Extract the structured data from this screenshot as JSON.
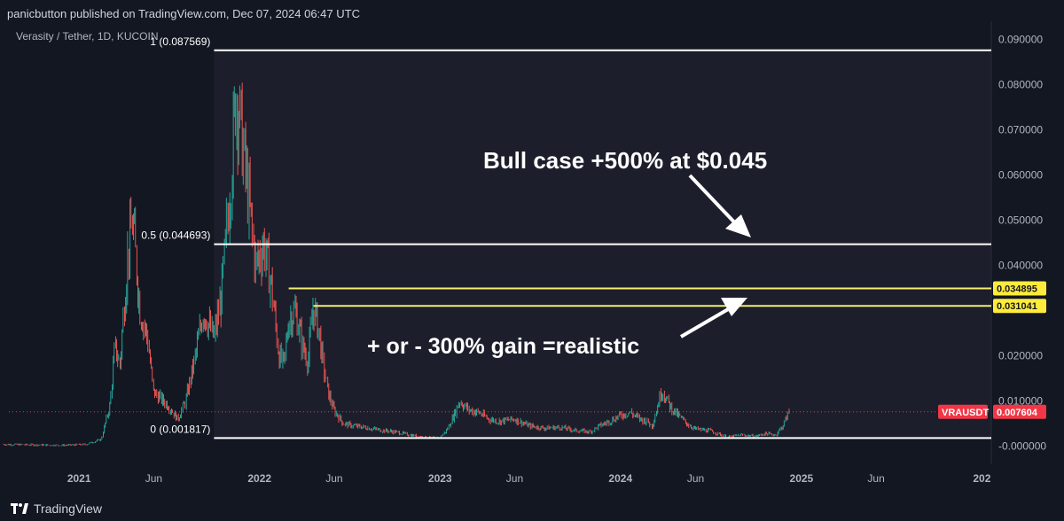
{
  "header": {
    "published_text": "panicbutton published on TradingView.com, Dec 07, 2024 06:47 UTC",
    "symbol_text": "Verasity / Tether, 1D, KUCOIN"
  },
  "footer": {
    "brand": "TradingView"
  },
  "chart_data": {
    "type": "line",
    "title": "Verasity / Tether, 1D, KUCOIN",
    "price_axis": {
      "range": [
        -0.004,
        0.094
      ],
      "ticks": [
        0.09,
        0.08,
        0.07,
        0.06,
        0.05,
        0.04,
        0.02,
        0.01,
        0.0
      ],
      "tick_labels": [
        "0.090000",
        "0.080000",
        "0.070000",
        "0.060000",
        "0.050000",
        "0.040000",
        "0.020000",
        "0.010000",
        "-0.000000"
      ]
    },
    "time_axis": {
      "ticks": [
        "2021-01-01",
        "2021-06-01",
        "2022-01-01",
        "2022-06-01",
        "2023-01-01",
        "2023-06-01",
        "2024-01-01",
        "2024-06-01",
        "2025-01-01",
        "2025-06-01",
        "2026-01-01"
      ],
      "tick_labels": [
        "2021",
        "Jun",
        "2022",
        "Jun",
        "2023",
        "Jun",
        "2024",
        "Jun",
        "2025",
        "Jun",
        "202"
      ]
    },
    "series": [
      {
        "x": [
          "2020-08-01",
          "2020-10-01",
          "2020-12-01",
          "2021-01-15",
          "2021-02-15",
          "2021-03-05",
          "2021-03-15",
          "2021-03-25",
          "2021-04-10",
          "2021-04-20",
          "2021-05-05",
          "2021-05-20",
          "2021-06-01",
          "2021-07-01",
          "2021-07-20",
          "2021-08-05",
          "2021-08-25",
          "2021-09-10",
          "2021-10-01",
          "2021-10-15",
          "2021-10-25",
          "2021-11-05",
          "2021-11-15",
          "2021-11-25",
          "2021-12-10",
          "2021-12-25",
          "2022-01-10",
          "2022-01-25",
          "2022-02-10",
          "2022-02-20",
          "2022-03-01",
          "2022-03-15",
          "2022-03-30",
          "2022-04-10",
          "2022-04-15",
          "2022-04-20",
          "2022-05-01",
          "2022-05-10",
          "2022-05-20",
          "2022-06-01",
          "2022-06-20",
          "2022-07-10",
          "2022-08-01",
          "2022-09-01",
          "2022-10-01",
          "2022-11-01",
          "2022-12-01",
          "2022-12-31",
          "2023-01-15",
          "2023-01-28",
          "2023-02-10",
          "2023-03-01",
          "2023-03-20",
          "2023-04-10",
          "2023-05-01",
          "2023-06-01",
          "2023-07-01",
          "2023-08-01",
          "2023-09-01",
          "2023-10-01",
          "2023-11-01",
          "2023-11-20",
          "2023-12-10",
          "2024-01-01",
          "2024-01-20",
          "2024-02-10",
          "2024-02-25",
          "2024-03-05",
          "2024-03-12",
          "2024-03-25",
          "2024-04-10",
          "2024-04-25",
          "2024-05-15",
          "2024-06-01",
          "2024-07-01",
          "2024-08-05",
          "2024-09-01",
          "2024-10-01",
          "2024-10-20",
          "2024-11-10",
          "2024-11-25",
          "2024-12-07"
        ],
        "values": [
          0.0004,
          0.0003,
          0.0002,
          0.0004,
          0.0015,
          0.009,
          0.022,
          0.018,
          0.042,
          0.05,
          0.03,
          0.024,
          0.012,
          0.009,
          0.006,
          0.01,
          0.02,
          0.03,
          0.024,
          0.032,
          0.045,
          0.06,
          0.079,
          0.07,
          0.055,
          0.04,
          0.045,
          0.036,
          0.02,
          0.018,
          0.028,
          0.03,
          0.022,
          0.019,
          0.025,
          0.031,
          0.026,
          0.018,
          0.012,
          0.008,
          0.005,
          0.0045,
          0.0042,
          0.0036,
          0.0032,
          0.0025,
          0.002,
          0.0018,
          0.0035,
          0.0065,
          0.01,
          0.008,
          0.0075,
          0.006,
          0.0055,
          0.006,
          0.0045,
          0.004,
          0.0042,
          0.0035,
          0.0032,
          0.0045,
          0.0055,
          0.0068,
          0.0075,
          0.006,
          0.0055,
          0.0045,
          0.007,
          0.0125,
          0.009,
          0.007,
          0.005,
          0.0038,
          0.0034,
          0.002,
          0.0025,
          0.0022,
          0.0028,
          0.0025,
          0.0045,
          0.007604
        ]
      }
    ],
    "fib_levels": [
      {
        "label": "1 (0.087569)",
        "value": 0.087569
      },
      {
        "label": "0.5 (0.044693)",
        "value": 0.044693
      },
      {
        "label": "0 (0.001817)",
        "value": 0.001817
      }
    ],
    "horizontal_lines": [
      {
        "value": 0.034895,
        "label": "0.034895",
        "start": "2022-03-01"
      },
      {
        "value": 0.031041,
        "label": "0.031041",
        "start": "2022-04-20"
      }
    ],
    "current_price": {
      "symbol": "VRAUSDT",
      "value": 0.007604,
      "label": "0.007604"
    },
    "annotations": [
      {
        "text": "Bull case +500% at $0.045"
      },
      {
        "text": "+ or - 300% gain =realistic"
      }
    ],
    "colors": {
      "background": "#131722",
      "shaded_region": "#1c1f2b",
      "fib_line": "#ffffff",
      "horizontal_line": "#f5ed6e",
      "up": "#26a69a",
      "down": "#ef5350",
      "price_tag": "#f23645",
      "yellow_tag": "#ffeb3b"
    }
  }
}
